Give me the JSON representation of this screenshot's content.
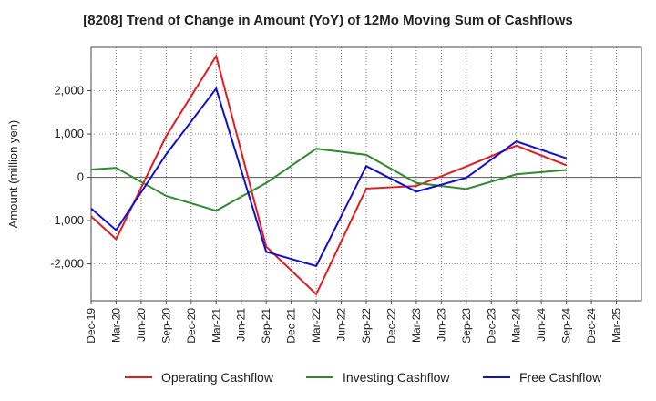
{
  "chart_data": {
    "type": "line",
    "title": "[8208]  Trend of Change in Amount (YoY) of 12Mo Moving Sum of Cashflows",
    "xlabel": "",
    "ylabel": "Amount (million yen)",
    "ylim": [
      -2850,
      3000
    ],
    "yticks": [
      -2000,
      -1000,
      0,
      1000,
      2000
    ],
    "ytick_labels": [
      "-2,000",
      "-1,000",
      "0",
      "1,000",
      "2,000"
    ],
    "categories": [
      "Dec-19",
      "Mar-20",
      "Jun-20",
      "Sep-20",
      "Dec-20",
      "Mar-21",
      "Jun-21",
      "Sep-21",
      "Dec-21",
      "Mar-22",
      "Jun-22",
      "Sep-22",
      "Dec-22",
      "Mar-23",
      "Jun-23",
      "Sep-23",
      "Dec-23",
      "Mar-24",
      "Jun-24",
      "Sep-24",
      "Dec-24",
      "Mar-25"
    ],
    "grid": true,
    "legend_position": "bottom",
    "series": [
      {
        "name": "Operating Cashflow",
        "color": "#e41a1c",
        "values": [
          -900,
          -1430,
          null,
          950,
          null,
          2800,
          null,
          -1600,
          null,
          -2700,
          null,
          -260,
          null,
          -200,
          null,
          250,
          null,
          730,
          null,
          280,
          null,
          null
        ]
      },
      {
        "name": "Investing Cashflow",
        "color": "#2e8b2e",
        "values": [
          180,
          220,
          null,
          -430,
          null,
          -770,
          null,
          -130,
          null,
          660,
          null,
          520,
          null,
          -130,
          null,
          -270,
          null,
          70,
          null,
          170,
          null,
          null
        ]
      },
      {
        "name": "Free Cashflow",
        "color": "#1010d0",
        "values": [
          -720,
          -1220,
          null,
          530,
          null,
          2050,
          null,
          -1720,
          null,
          -2050,
          null,
          260,
          null,
          -330,
          null,
          -10,
          null,
          830,
          null,
          440,
          null,
          null
        ]
      }
    ]
  }
}
